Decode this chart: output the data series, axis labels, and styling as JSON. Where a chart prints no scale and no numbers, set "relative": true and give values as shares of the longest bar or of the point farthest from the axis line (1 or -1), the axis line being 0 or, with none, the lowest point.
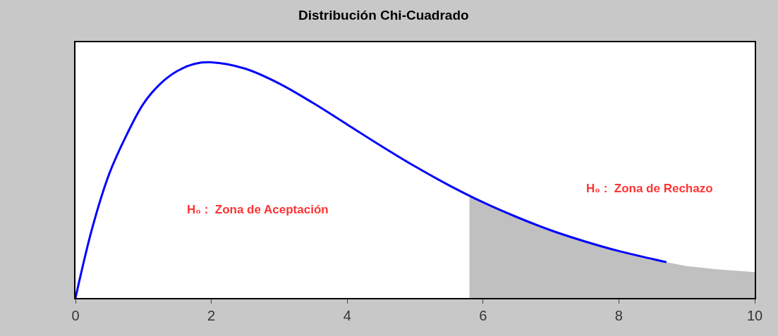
{
  "chart_data": {
    "type": "line",
    "title": "Distribución Chi-Cuadrado",
    "relative": true,
    "xlim": [
      0,
      10
    ],
    "xticks": [
      0,
      2,
      4,
      6,
      8,
      10
    ],
    "series": [
      {
        "type": "area",
        "color": "#c0c0c0",
        "x": [
          5.8,
          6,
          6.5,
          7,
          7.5,
          8,
          8.5,
          8.7,
          9,
          9.5,
          10
        ],
        "values": [
          0.434,
          0.406,
          0.343,
          0.287,
          0.24,
          0.199,
          0.165,
          0.152,
          0.135,
          0.12,
          0.11
        ]
      },
      {
        "color": "#0000ff",
        "x": [
          0,
          0.25,
          0.5,
          0.75,
          1,
          1.25,
          1.5,
          1.75,
          2,
          2.5,
          3,
          3.5,
          4,
          4.5,
          5,
          5.5,
          6,
          6.5,
          7,
          7.5,
          8,
          8.5,
          8.7
        ],
        "values": [
          0,
          0.3,
          0.529,
          0.69,
          0.824,
          0.909,
          0.963,
          0.993,
          1,
          0.973,
          0.91,
          0.827,
          0.736,
          0.645,
          0.558,
          0.478,
          0.406,
          0.343,
          0.287,
          0.24,
          0.199,
          0.165,
          0.152
        ]
      }
    ],
    "annotations": [
      "H₀ :  Zona de Aceptación",
      "H₀ :  Zona de Rechazo"
    ]
  }
}
